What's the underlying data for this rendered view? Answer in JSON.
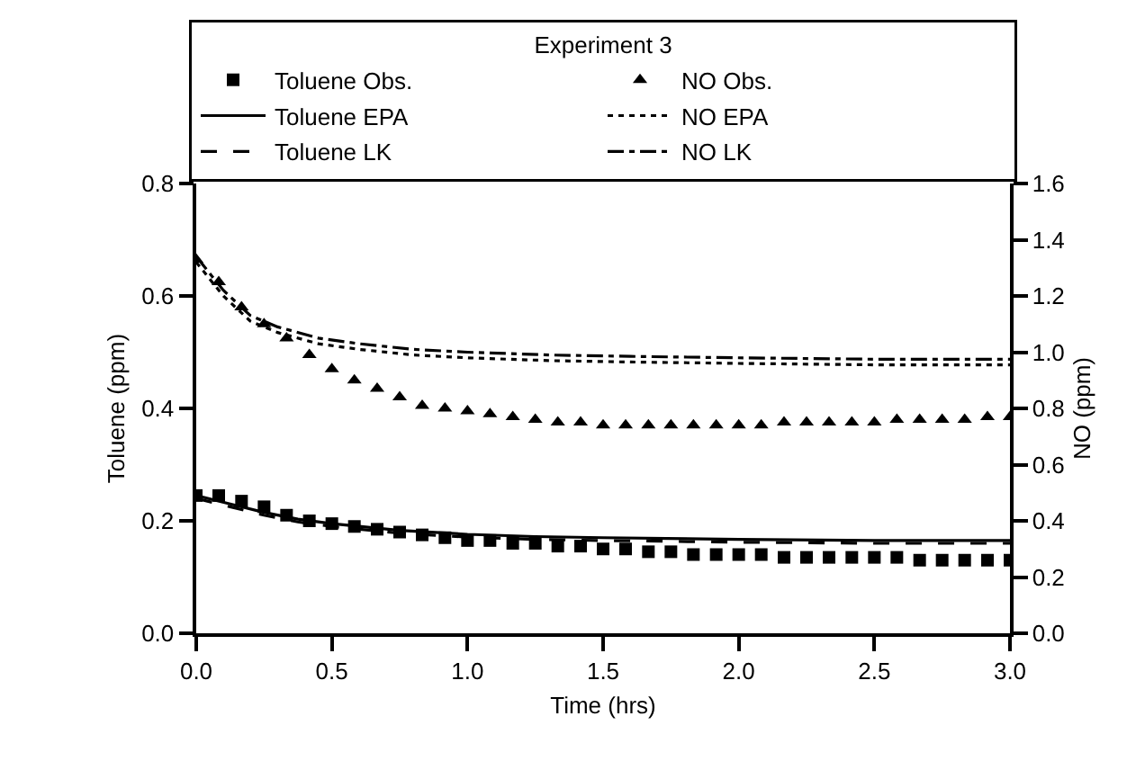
{
  "chart_data": {
    "type": "line",
    "legend_title": "Experiment 3",
    "xlabel": "Time (hrs)",
    "ylabel": "Toluene (ppm)",
    "y2label": "NO (ppm)",
    "xlim": [
      0,
      3
    ],
    "xticks": [
      {
        "value": 0,
        "label": "0.0"
      },
      0.5,
      {
        "value": 1,
        "label": "1.0"
      },
      1.5,
      {
        "value": 2,
        "label": "2.0"
      },
      2.5,
      {
        "value": 3,
        "label": "3.0"
      }
    ],
    "ylim": [
      0,
      0.8
    ],
    "yticks": [
      {
        "value": 0,
        "label": "0.0"
      },
      0.2,
      0.4,
      0.6,
      0.8
    ],
    "y2lim": [
      0,
      1.6
    ],
    "y2ticks": [
      {
        "value": 0,
        "label": "0.0"
      },
      0.2,
      0.4,
      0.6,
      0.8,
      {
        "value": 1,
        "label": "1.0"
      },
      1.2,
      1.4,
      1.6
    ],
    "grid": false,
    "legend": "top",
    "series": [
      {
        "name": "Toluene Obs.",
        "type": "scatter",
        "marker": "square",
        "color": "#000000",
        "x": [
          0,
          0.083,
          0.167,
          0.25,
          0.333,
          0.417,
          0.5,
          0.583,
          0.667,
          0.75,
          0.833,
          0.917,
          1,
          1.083,
          1.167,
          1.25,
          1.333,
          1.417,
          1.5,
          1.583,
          1.667,
          1.75,
          1.833,
          1.917,
          2,
          2.083,
          2.167,
          2.25,
          2.333,
          2.417,
          2.5,
          2.583,
          2.667,
          2.75,
          2.833,
          2.917,
          3
        ],
        "values": [
          0.245,
          0.245,
          0.235,
          0.225,
          0.21,
          0.2,
          0.195,
          0.19,
          0.185,
          0.18,
          0.175,
          0.17,
          0.165,
          0.165,
          0.16,
          0.16,
          0.155,
          0.155,
          0.15,
          0.15,
          0.145,
          0.145,
          0.14,
          0.14,
          0.14,
          0.14,
          0.135,
          0.135,
          0.135,
          0.135,
          0.135,
          0.135,
          0.13,
          0.13,
          0.13,
          0.13,
          0.13
        ]
      },
      {
        "name": "NO Obs.",
        "type": "scatter",
        "marker": "triangle",
        "axis": "y2",
        "color": "#000000",
        "x": [
          0,
          0.083,
          0.167,
          0.25,
          0.333,
          0.417,
          0.5,
          0.583,
          0.667,
          0.75,
          0.833,
          0.917,
          1,
          1.083,
          1.167,
          1.25,
          1.333,
          1.417,
          1.5,
          1.583,
          1.667,
          1.75,
          1.833,
          1.917,
          2,
          2.083,
          2.167,
          2.25,
          2.333,
          2.417,
          2.5,
          2.583,
          2.667,
          2.75,
          2.833,
          2.917,
          3
        ],
        "values": [
          1.33,
          1.25,
          1.16,
          1.1,
          1.05,
          0.99,
          0.94,
          0.9,
          0.87,
          0.84,
          0.81,
          0.8,
          0.79,
          0.78,
          0.77,
          0.76,
          0.75,
          0.75,
          0.74,
          0.74,
          0.74,
          0.74,
          0.74,
          0.74,
          0.74,
          0.74,
          0.75,
          0.75,
          0.75,
          0.75,
          0.75,
          0.76,
          0.76,
          0.76,
          0.76,
          0.77,
          0.77
        ]
      },
      {
        "name": "Toluene EPA",
        "type": "line",
        "line_style": "solid",
        "color": "#000000",
        "x": [
          0,
          0.125,
          0.25,
          0.375,
          0.5,
          0.75,
          1,
          1.25,
          1.5,
          2,
          2.5,
          3
        ],
        "values": [
          0.245,
          0.23,
          0.215,
          0.203,
          0.195,
          0.183,
          0.176,
          0.172,
          0.17,
          0.167,
          0.165,
          0.165
        ]
      },
      {
        "name": "NO EPA",
        "type": "line",
        "line_style": "dotted",
        "axis": "y2",
        "color": "#000000",
        "x": [
          0,
          0.1,
          0.2,
          0.3,
          0.45,
          0.6,
          0.8,
          1,
          1.3,
          1.6,
          2,
          2.5,
          3
        ],
        "values": [
          1.32,
          1.2,
          1.11,
          1.07,
          1.03,
          1.01,
          0.99,
          0.98,
          0.97,
          0.965,
          0.96,
          0.955,
          0.955
        ]
      },
      {
        "name": "Toluene LK",
        "type": "line",
        "line_style": "dashed",
        "color": "#000000",
        "x": [
          0,
          0.125,
          0.25,
          0.375,
          0.5,
          0.75,
          1,
          1.25,
          1.5,
          2,
          2.5,
          3
        ],
        "values": [
          0.24,
          0.225,
          0.21,
          0.198,
          0.19,
          0.178,
          0.171,
          0.167,
          0.165,
          0.162,
          0.16,
          0.16
        ]
      },
      {
        "name": "NO LK",
        "type": "line",
        "line_style": "dashdot",
        "axis": "y2",
        "color": "#000000",
        "x": [
          0,
          0.1,
          0.2,
          0.3,
          0.45,
          0.6,
          0.8,
          1,
          1.3,
          1.6,
          2,
          2.5,
          3
        ],
        "values": [
          1.34,
          1.22,
          1.13,
          1.09,
          1.05,
          1.03,
          1.01,
          1,
          0.99,
          0.985,
          0.98,
          0.975,
          0.975
        ]
      }
    ]
  }
}
